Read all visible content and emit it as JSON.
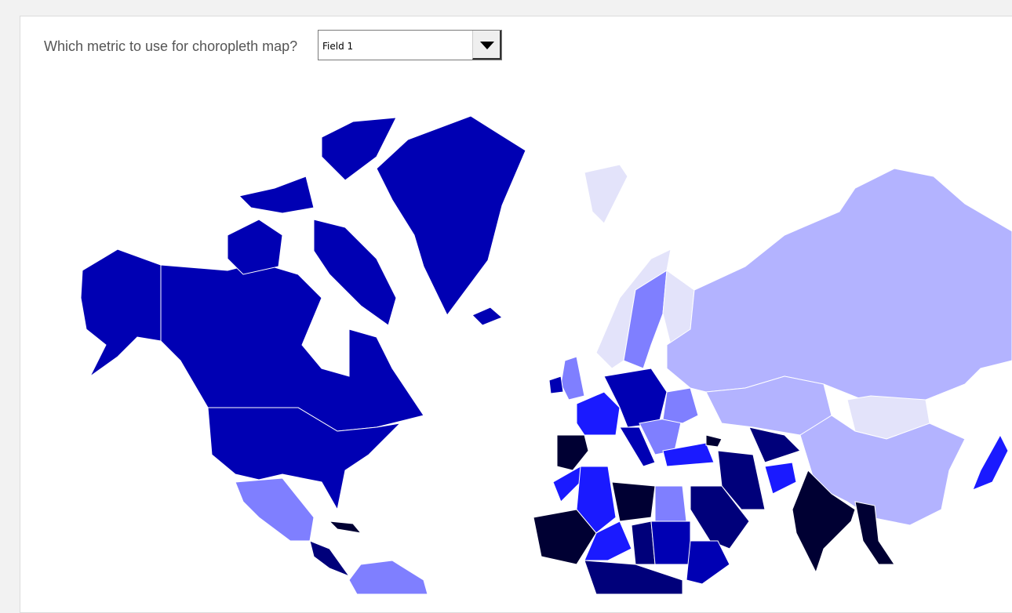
{
  "control": {
    "label": "Which metric to use for choropleth map?",
    "selected": "Field 1"
  },
  "map": {
    "type": "choropleth",
    "palette": {
      "darkest": "#000033",
      "dark": "#00007a",
      "strong": "#0000b3",
      "bright": "#1a1aff",
      "medium": "#7f7fff",
      "light": "#b3b3ff",
      "lightest": "#e3e3fa"
    }
  }
}
